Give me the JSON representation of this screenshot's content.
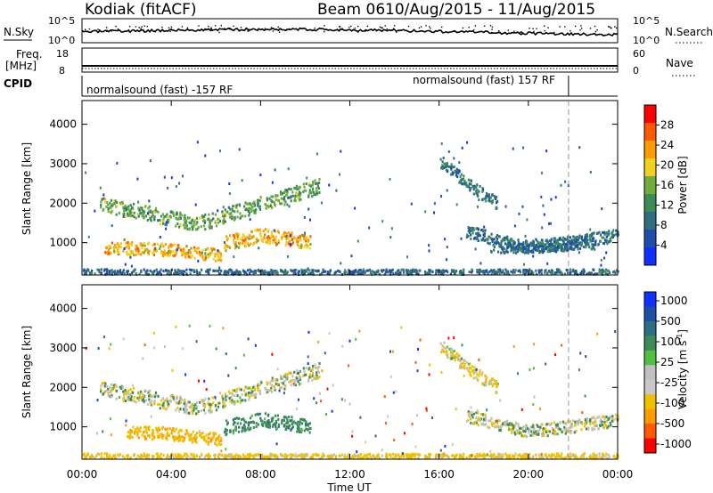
{
  "header": {
    "station": "Kodiak (fitACF)",
    "beam": "Beam 06",
    "dates": "10/Aug/2015 - 11/Aug/2015"
  },
  "top_panels": {
    "nsky_label": "N.Sky",
    "nsky_ticks": [
      "10^5",
      "10^0"
    ],
    "nsearch_label": "N.Search",
    "nsearch_ticks": [
      "10^5",
      "10^0"
    ],
    "freq_label_1": "Freq.",
    "freq_label_2": "[MHz]",
    "freq_ticks": [
      "18",
      "8"
    ],
    "nave_label": "Nave",
    "nave_ticks": [
      "60",
      "0"
    ],
    "cpid_label": "CPID",
    "cpid_segments": [
      {
        "text": "normalsound (fast) -157 RF",
        "start_hour": 0,
        "end_hour": 21.8
      },
      {
        "text": "normalsound (fast) 157 RF",
        "start_hour": 21.8,
        "end_hour": 24
      }
    ]
  },
  "colors": {
    "power_scale": [
      "#1030ff",
      "#1f4ea8",
      "#2e6e80",
      "#3d8c58",
      "#6fae3c",
      "#f0d020",
      "#ff9a00",
      "#ff5a00",
      "#ff0000"
    ],
    "velocity_scale": [
      "#1030ff",
      "#1f4ea8",
      "#2e6e80",
      "#3d8c58",
      "#50c040",
      "#c0c0c0",
      "#c8c8c8",
      "#f0c000",
      "#ff9a00",
      "#ff5a00",
      "#ff0000"
    ],
    "ground_scatter": "#bebebe"
  },
  "chart_data": [
    {
      "type": "heatmap",
      "title": "",
      "xlabel": "Time UT",
      "ylabel": "Slant Range [km]",
      "xlim": [
        0,
        24
      ],
      "ylim": [
        180,
        4600
      ],
      "x_ticks": [
        "00:00",
        "04:00",
        "08:00",
        "12:00",
        "16:00",
        "20:00",
        "00:00"
      ],
      "y_ticks": [
        "1000",
        "2000",
        "3000",
        "4000"
      ],
      "colorbar": {
        "label": "Power [dB]",
        "range": [
          0,
          32
        ],
        "ticks": [
          "4",
          "8",
          "12",
          "16",
          "20",
          "24",
          "28"
        ]
      },
      "bands": [
        {
          "t0": 0.8,
          "t1": 10.6,
          "r_start": 2000,
          "r_mid": 1500,
          "r_end": 2450,
          "t_mid": 5.2,
          "width": 240,
          "value": 14
        },
        {
          "t0": 1.0,
          "t1": 6.2,
          "r_start": 900,
          "r_mid": 850,
          "r_end": 700,
          "t_mid": 4.0,
          "width": 200,
          "value": 22
        },
        {
          "t0": 6.3,
          "t1": 10.2,
          "r_start": 1000,
          "r_mid": 1200,
          "r_end": 1050,
          "t_mid": 8.0,
          "width": 230,
          "value": 22
        },
        {
          "t0": 16.0,
          "t1": 18.6,
          "r_start": 3100,
          "r_mid": 2500,
          "r_end": 2000,
          "t_mid": 17.3,
          "width": 200,
          "value": 9
        },
        {
          "t0": 17.2,
          "t1": 24.0,
          "r_start": 1300,
          "r_mid": 900,
          "r_end": 1200,
          "t_mid": 20.0,
          "width": 200,
          "value": 8
        },
        {
          "t0": 18.2,
          "t1": 23.0,
          "r_start": 900,
          "r_mid": 900,
          "r_end": 1000,
          "t_mid": 20.0,
          "width": 170,
          "value": 7
        },
        {
          "t0": 0.0,
          "t1": 24.0,
          "r_start": 250,
          "r_mid": 240,
          "r_end": 250,
          "t_mid": 12.0,
          "width": 130,
          "value": 7
        }
      ]
    },
    {
      "type": "heatmap",
      "title": "",
      "xlabel": "Time UT",
      "ylabel": "Slant Range [km]",
      "xlim": [
        0,
        24
      ],
      "ylim": [
        180,
        4600
      ],
      "x_ticks": [
        "00:00",
        "04:00",
        "08:00",
        "12:00",
        "16:00",
        "20:00",
        "00:00"
      ],
      "y_ticks": [
        "1000",
        "2000",
        "3000",
        "4000"
      ],
      "colorbar": {
        "label": "Velocity [m s^-1]",
        "ticks": [
          "1000",
          "500",
          "100",
          "25",
          "-25",
          "-100",
          "-500",
          "-1000"
        ]
      },
      "bands": [
        {
          "t0": 0.8,
          "t1": 10.6,
          "r_start": 2000,
          "r_mid": 1500,
          "r_end": 2450,
          "t_mid": 5.2,
          "width": 240,
          "value": 0
        },
        {
          "t0": 2.0,
          "t1": 6.2,
          "r_start": 900,
          "r_mid": 850,
          "r_end": 700,
          "t_mid": 4.0,
          "width": 200,
          "value": -250
        },
        {
          "t0": 6.3,
          "t1": 10.2,
          "r_start": 1000,
          "r_mid": 1200,
          "r_end": 1050,
          "t_mid": 8.0,
          "width": 230,
          "value": 200
        },
        {
          "t0": 16.0,
          "t1": 18.6,
          "r_start": 3100,
          "r_mid": 2500,
          "r_end": 2000,
          "t_mid": 17.3,
          "width": 200,
          "value": -80
        },
        {
          "t0": 17.2,
          "t1": 24.0,
          "r_start": 1300,
          "r_mid": 900,
          "r_end": 1200,
          "t_mid": 20.0,
          "width": 200,
          "value": 0
        },
        {
          "t0": 0.0,
          "t1": 24.0,
          "r_start": 250,
          "r_mid": 240,
          "r_end": 250,
          "t_mid": 12.0,
          "width": 130,
          "value": -150
        }
      ]
    }
  ]
}
